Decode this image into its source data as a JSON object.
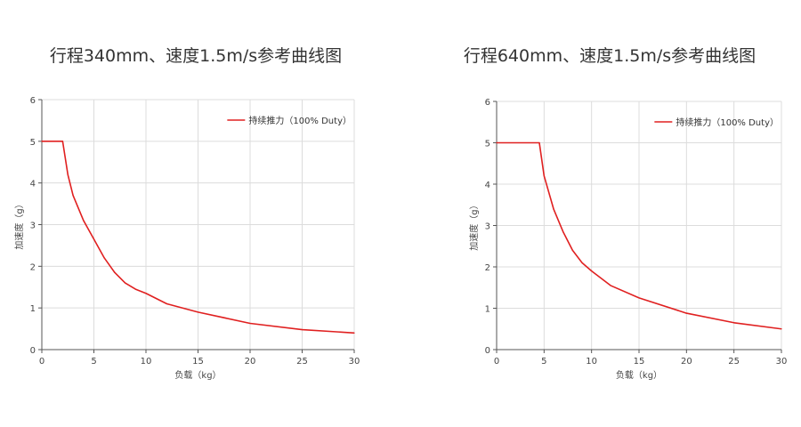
{
  "chart_data": [
    {
      "type": "line",
      "title": "行程340mm、速度1.5m/s参考曲线图",
      "xlabel": "负载（kg）",
      "ylabel": "加速度（g）",
      "xlim": [
        0,
        30
      ],
      "ylim": [
        0,
        6
      ],
      "xticks": [
        "0",
        "5",
        "10",
        "15",
        "20",
        "25",
        "30"
      ],
      "yticks": [
        "0",
        "1",
        "2",
        "3",
        "4",
        "5",
        "6"
      ],
      "grid": true,
      "legend_position": "top-right",
      "series": [
        {
          "name": "持续推力（100% Duty）",
          "color": "#e02020",
          "x": [
            0,
            2,
            2.5,
            3,
            4,
            5,
            6,
            7,
            8,
            9,
            10,
            12,
            15,
            20,
            25,
            30
          ],
          "y": [
            5,
            5,
            4.2,
            3.7,
            3.1,
            2.65,
            2.2,
            1.85,
            1.6,
            1.45,
            1.35,
            1.1,
            0.9,
            0.63,
            0.48,
            0.4
          ]
        }
      ]
    },
    {
      "type": "line",
      "title": "行程640mm、速度1.5m/s参考曲线图",
      "xlabel": "负载（kg）",
      "ylabel": "加速度（g）",
      "xlim": [
        0,
        30
      ],
      "ylim": [
        0,
        6
      ],
      "xticks": [
        "0",
        "5",
        "10",
        "15",
        "20",
        "25",
        "30"
      ],
      "yticks": [
        "0",
        "1",
        "2",
        "3",
        "4",
        "5",
        "6"
      ],
      "grid": true,
      "legend_position": "top-right",
      "series": [
        {
          "name": "持续推力（100% Duty）",
          "color": "#e02020",
          "x": [
            0,
            4.5,
            5,
            6,
            7,
            8,
            9,
            10,
            12,
            15,
            20,
            25,
            30
          ],
          "y": [
            5,
            5,
            4.2,
            3.4,
            2.85,
            2.4,
            2.1,
            1.9,
            1.55,
            1.25,
            0.88,
            0.65,
            0.5
          ]
        }
      ]
    }
  ]
}
